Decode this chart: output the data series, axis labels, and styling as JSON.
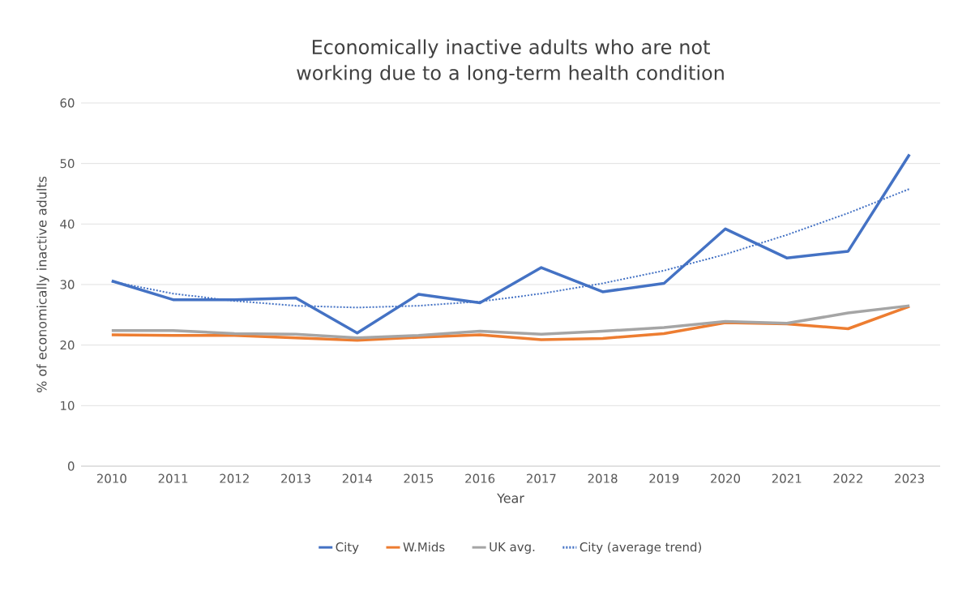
{
  "chart_data": {
    "type": "line",
    "title": "Economically inactive adults who are not working due to a long-term health condition",
    "xlabel": "Year",
    "ylabel": "% of economically inactive adults",
    "categories": [
      "2010",
      "2011",
      "2012",
      "2013",
      "2014",
      "2015",
      "2016",
      "2017",
      "2018",
      "2019",
      "2020",
      "2021",
      "2022",
      "2023"
    ],
    "series": [
      {
        "name": "City",
        "color": "#4472c4",
        "values": [
          30.6,
          27.5,
          27.5,
          27.8,
          22.0,
          28.4,
          27.0,
          32.8,
          28.8,
          30.2,
          39.2,
          34.4,
          35.5,
          51.5
        ]
      },
      {
        "name": "W.Mids",
        "color": "#ed7d31",
        "values": [
          21.7,
          21.6,
          21.6,
          21.2,
          20.8,
          21.3,
          21.7,
          20.9,
          21.1,
          21.9,
          23.7,
          23.5,
          22.7,
          26.4
        ]
      },
      {
        "name": "UK avg.",
        "color": "#a5a5a5",
        "values": [
          22.4,
          22.4,
          21.9,
          21.8,
          21.2,
          21.6,
          22.3,
          21.8,
          22.3,
          22.9,
          23.9,
          23.6,
          25.3,
          26.5
        ]
      },
      {
        "name": "City (average trend)",
        "color": "#4472c4",
        "line_style": "dotted",
        "values": [
          30.5,
          28.5,
          27.3,
          26.5,
          26.2,
          26.5,
          27.2,
          28.5,
          30.2,
          32.3,
          35.0,
          38.2,
          41.8,
          45.8
        ]
      }
    ],
    "ylim": [
      0,
      60
    ],
    "yticks": [
      0,
      10,
      20,
      30,
      40,
      50,
      60
    ],
    "grid": "y",
    "legend": "bottom",
    "marker": "none",
    "line_style": "solid"
  }
}
